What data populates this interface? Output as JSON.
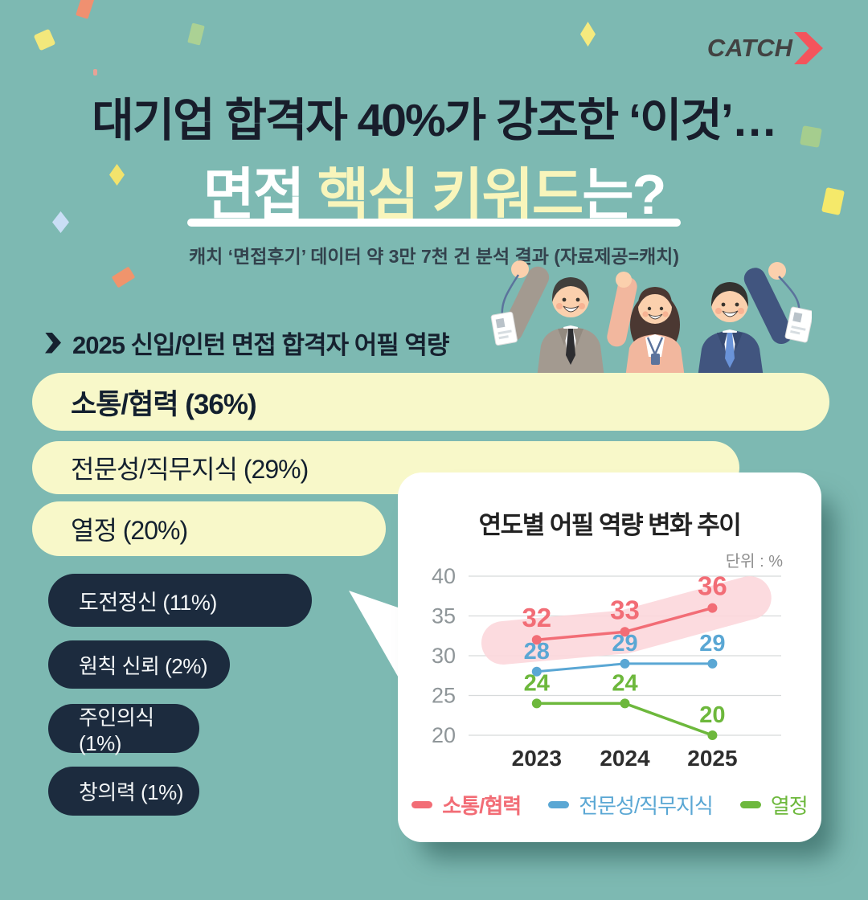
{
  "brand": {
    "name": "CATCH",
    "arrow_icon": "chevron-right",
    "arrow_color": "#f4545c"
  },
  "header": {
    "title_line1": "대기업 합격자 40%가 강조한 ‘이것’…",
    "title_line2_part1": "면접 ",
    "title_line2_part2": "핵심 키워드",
    "title_line2_part3": "는?",
    "subtitle": "캐치 ‘면접후기’ 데이터 약 3만 7천 건 분석 결과 (자료제공=캐치)"
  },
  "section": {
    "bullet_icon": "chevron-right",
    "title": "2025 신입/인턴 면접 합격자 어필 역량"
  },
  "ranking": {
    "items": [
      {
        "text": "소통/협력 (36%)",
        "theme": "yellow",
        "emphasis": true
      },
      {
        "text": "전문성/직무지식 (29%)",
        "theme": "yellow",
        "emphasis": false
      },
      {
        "text": "열정 (20%)",
        "theme": "yellow",
        "emphasis": false
      },
      {
        "text": "도전정신 (11%)",
        "theme": "navy",
        "emphasis": false
      },
      {
        "text": "원칙 신뢰 (2%)",
        "theme": "navy",
        "emphasis": false
      },
      {
        "text": "주인의식 (1%)",
        "theme": "navy",
        "emphasis": false
      },
      {
        "text": "창의력 (1%)",
        "theme": "navy",
        "emphasis": false
      }
    ]
  },
  "chart_data": {
    "type": "line",
    "title": "연도별 어필 역량 변화 추이",
    "unit_label": "단위 : %",
    "categories": [
      "2023",
      "2024",
      "2025"
    ],
    "series": [
      {
        "name": "소통/협력",
        "values": [
          32,
          33,
          36
        ],
        "color": "#f26d76",
        "highlighted": true
      },
      {
        "name": "전문성/직무지식",
        "values": [
          28,
          29,
          29
        ],
        "color": "#5aa7d4",
        "highlighted": false
      },
      {
        "name": "열정",
        "values": [
          24,
          24,
          20
        ],
        "color": "#6db83c",
        "highlighted": false
      }
    ],
    "yticks": [
      40,
      35,
      30,
      25,
      20
    ],
    "ylim": [
      20,
      40
    ],
    "grid": true,
    "legend_position": "bottom",
    "highlight_color": "#fcd7db"
  },
  "colors": {
    "background": "#7db9b2",
    "pill_yellow": "#f8f8c9",
    "pill_navy": "#1c2b3e",
    "title_navy": "#181d2b",
    "title_yellow": "#f8f5bb"
  }
}
